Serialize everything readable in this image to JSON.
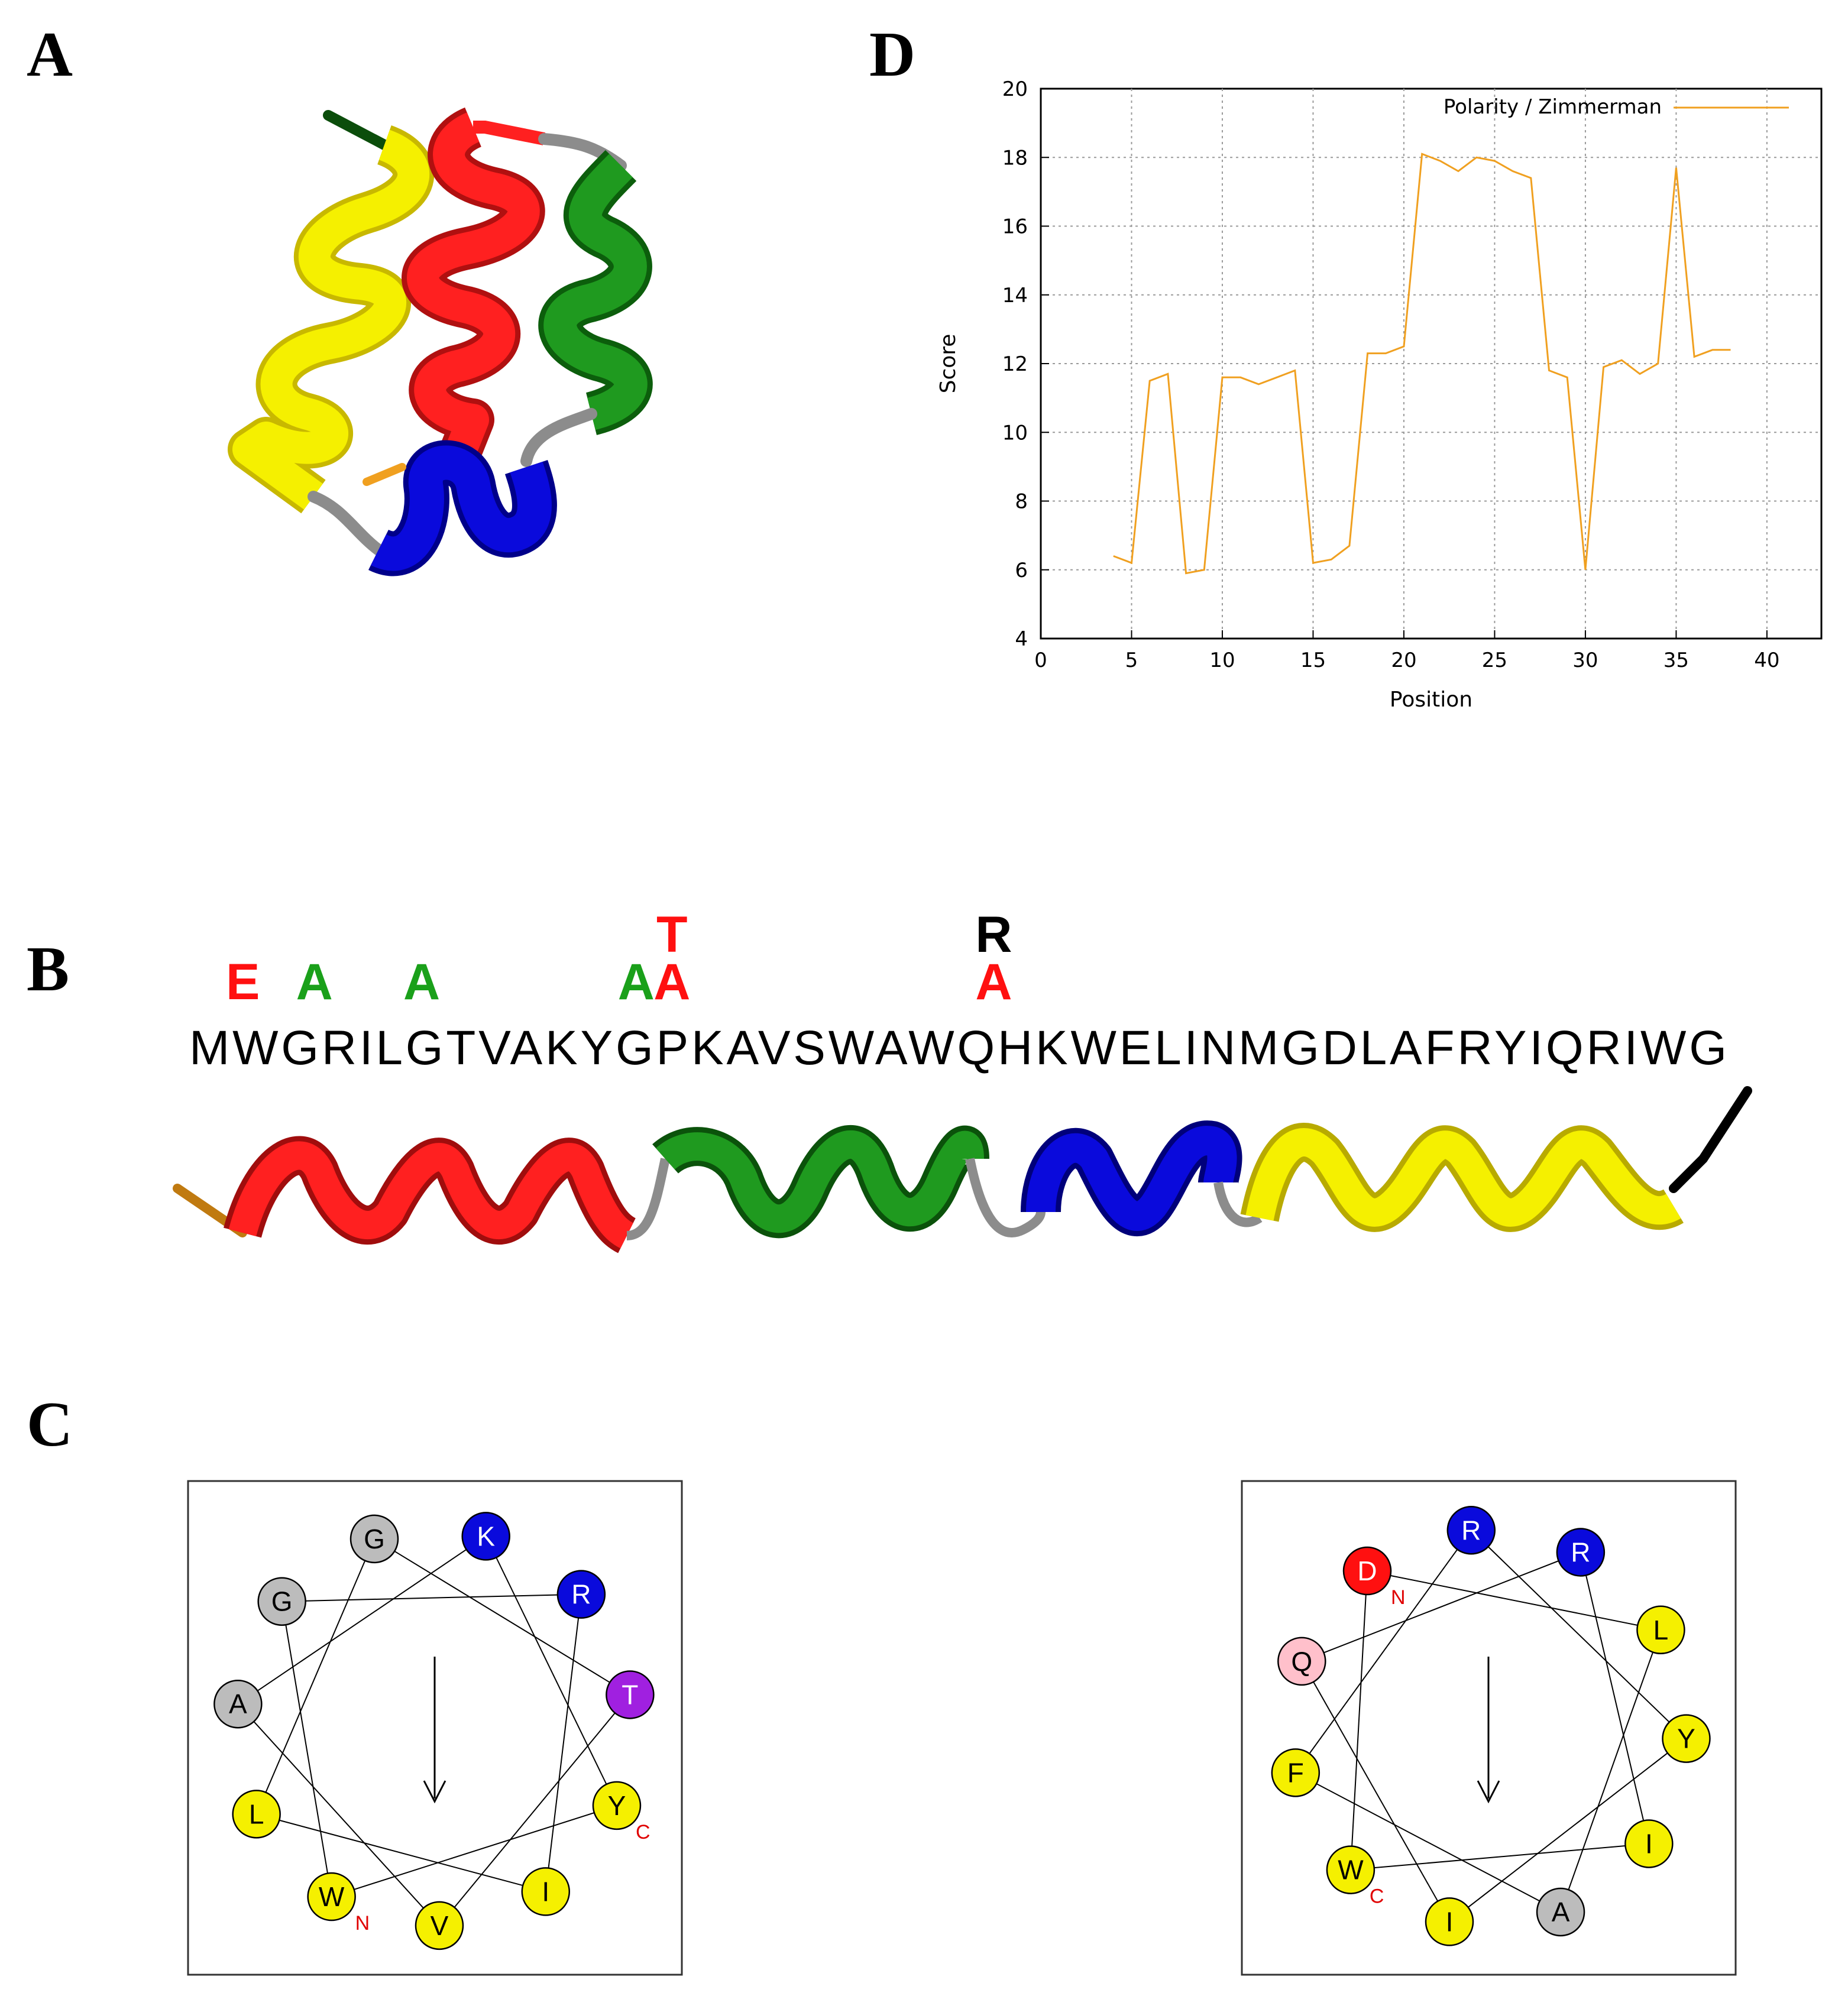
{
  "panels": {
    "a": "A",
    "b": "B",
    "c": "C",
    "d": "D"
  },
  "colors": {
    "helix1": "#ff2020",
    "helix2": "#1f9a1f",
    "helix3": "#0a0adc",
    "helix4": "#f5f000",
    "loop": "#8c8c8c",
    "polar_line": "#f0a020",
    "mut_red": "#ff1010",
    "mut_green": "#1aa01a",
    "mut_black": "#000000"
  },
  "sequence": "MWGRILGTVAKYGPKAVSWAWQHKWELINMGDLAFRYIQRIWG",
  "mutations": [
    {
      "pos": 2,
      "letters": [
        "E"
      ],
      "colors": [
        "red"
      ]
    },
    {
      "pos": 4,
      "letters": [
        "A"
      ],
      "colors": [
        "green"
      ]
    },
    {
      "pos": 7,
      "letters": [
        "A"
      ],
      "colors": [
        "green"
      ]
    },
    {
      "pos": 13,
      "letters": [
        "A"
      ],
      "colors": [
        "green"
      ]
    },
    {
      "pos": 14,
      "letters": [
        "A",
        "T"
      ],
      "colors": [
        "red",
        "red"
      ]
    },
    {
      "pos": 23,
      "letters": [
        "A",
        "R"
      ],
      "colors": [
        "red",
        "black"
      ]
    }
  ],
  "wheel_left": {
    "residues": [
      {
        "label": "K",
        "color": "#0a0adc",
        "text": "#ffffff"
      },
      {
        "label": "R",
        "color": "#0a0adc",
        "text": "#ffffff"
      },
      {
        "label": "T",
        "color": "#a020e0",
        "text": "#ffffff"
      },
      {
        "label": "Y",
        "color": "#f5f000",
        "text": "#000000"
      },
      {
        "label": "I",
        "color": "#f5f000",
        "text": "#000000"
      },
      {
        "label": "V",
        "color": "#f5f000",
        "text": "#000000"
      },
      {
        "label": "W",
        "color": "#f5f000",
        "text": "#000000"
      },
      {
        "label": "L",
        "color": "#f5f000",
        "text": "#000000"
      },
      {
        "label": "A",
        "color": "#bcbcbc",
        "text": "#000000"
      },
      {
        "label": "G",
        "color": "#bcbcbc",
        "text": "#000000"
      },
      {
        "label": "G",
        "color": "#bcbcbc",
        "text": "#000000"
      }
    ],
    "n_label": "N",
    "c_label": "C"
  },
  "wheel_right": {
    "residues": [
      {
        "label": "R",
        "color": "#0a0adc",
        "text": "#ffffff"
      },
      {
        "label": "R",
        "color": "#0a0adc",
        "text": "#ffffff"
      },
      {
        "label": "L",
        "color": "#f5f000",
        "text": "#000000"
      },
      {
        "label": "Y",
        "color": "#f5f000",
        "text": "#000000"
      },
      {
        "label": "I",
        "color": "#f5f000",
        "text": "#000000"
      },
      {
        "label": "A",
        "color": "#bcbcbc",
        "text": "#000000"
      },
      {
        "label": "I",
        "color": "#f5f000",
        "text": "#000000"
      },
      {
        "label": "W",
        "color": "#f5f000",
        "text": "#000000"
      },
      {
        "label": "F",
        "color": "#f5f000",
        "text": "#000000"
      },
      {
        "label": "Q",
        "color": "#ffc0cb",
        "text": "#000000"
      },
      {
        "label": "D",
        "color": "#ff1010",
        "text": "#ffffff"
      }
    ],
    "n_label": "N",
    "c_label": "C"
  },
  "chart_data": {
    "type": "line",
    "legend": "Polarity / Zimmerman",
    "legend_position": "top-right",
    "xlabel": "Position",
    "ylabel": "Score",
    "xlim": [
      0,
      43
    ],
    "ylim": [
      4,
      20
    ],
    "xticks": [
      0,
      5,
      10,
      15,
      20,
      25,
      30,
      35,
      40
    ],
    "yticks": [
      4,
      6,
      8,
      10,
      12,
      14,
      16,
      18,
      20
    ],
    "grid": true,
    "x": [
      4,
      5,
      6,
      7,
      8,
      9,
      10,
      11,
      12,
      13,
      14,
      15,
      16,
      17,
      18,
      19,
      20,
      21,
      22,
      23,
      24,
      25,
      26,
      27,
      28,
      29,
      30,
      31,
      32,
      33,
      34,
      35,
      36,
      37,
      38
    ],
    "y": [
      6.4,
      6.2,
      11.5,
      11.7,
      5.9,
      6.0,
      11.6,
      11.6,
      11.4,
      11.6,
      11.8,
      6.2,
      6.3,
      6.7,
      12.3,
      12.3,
      12.5,
      18.1,
      17.9,
      17.6,
      18.0,
      17.9,
      17.6,
      17.4,
      11.8,
      11.6,
      6.0,
      11.9,
      12.1,
      11.7,
      12.0,
      17.7,
      12.2,
      12.4,
      12.4
    ]
  }
}
